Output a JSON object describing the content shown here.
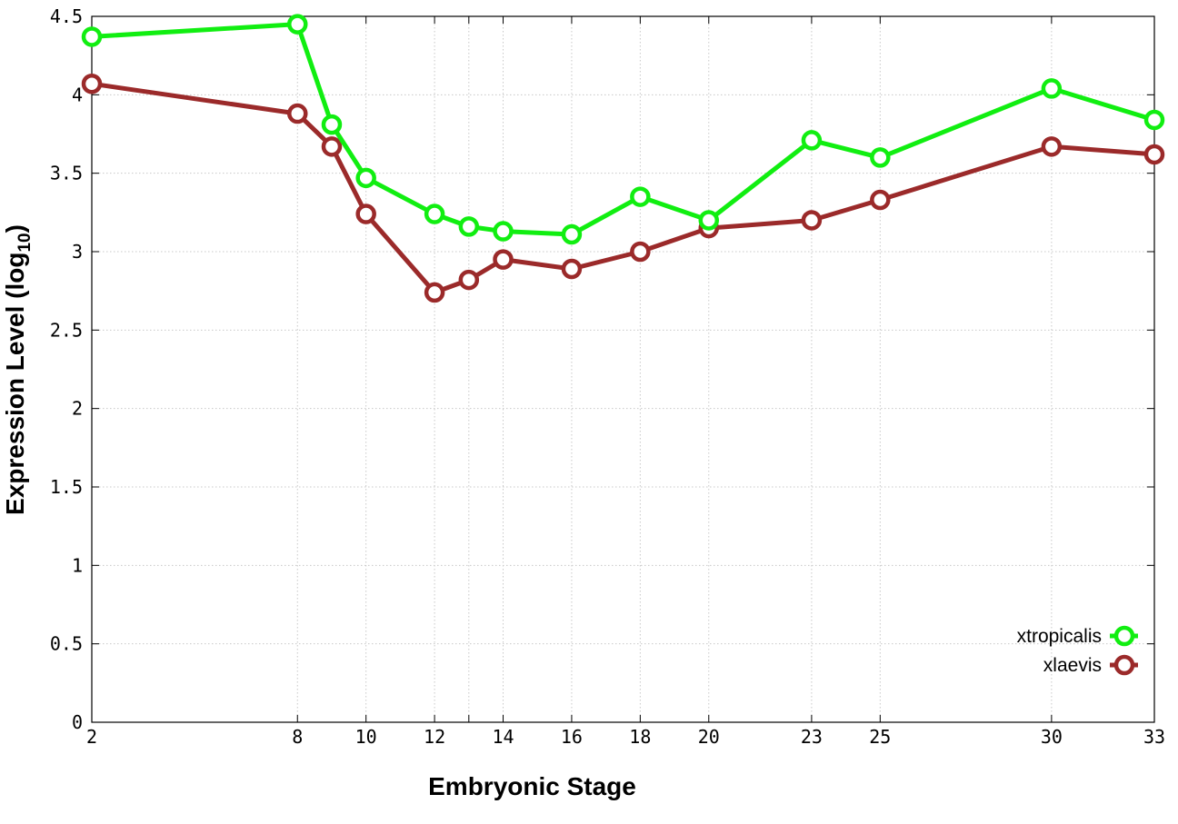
{
  "chart_data": {
    "type": "line",
    "title": "",
    "xlabel": "Embryonic Stage",
    "ylabel": {
      "prefix": "Expression Level (log",
      "subscript": "10",
      "suffix": ")"
    },
    "xlim": [
      2,
      33
    ],
    "ylim": [
      0,
      4.5
    ],
    "x_ticks": [
      2,
      8,
      10,
      12,
      13,
      14,
      16,
      18,
      20,
      23,
      25,
      30,
      33
    ],
    "x_tick_labels": [
      {
        "x": 2,
        "label": "2"
      },
      {
        "x": 8,
        "label": "8"
      },
      {
        "x": 10,
        "label": "10"
      },
      {
        "x": 12,
        "label": "12"
      },
      {
        "x": 14,
        "label": "14"
      },
      {
        "x": 16,
        "label": "16"
      },
      {
        "x": 18,
        "label": "18"
      },
      {
        "x": 20,
        "label": "20"
      },
      {
        "x": 23,
        "label": "23"
      },
      {
        "x": 25,
        "label": "25"
      },
      {
        "x": 30,
        "label": "30"
      },
      {
        "x": 33,
        "label": "33"
      }
    ],
    "y_ticks": [
      {
        "value": 0,
        "label": "0"
      },
      {
        "value": 0.5,
        "label": "0.5"
      },
      {
        "value": 1,
        "label": "1"
      },
      {
        "value": 1.5,
        "label": "1.5"
      },
      {
        "value": 2,
        "label": "2"
      },
      {
        "value": 2.5,
        "label": "2.5"
      },
      {
        "value": 3,
        "label": "3"
      },
      {
        "value": 3.5,
        "label": "3.5"
      },
      {
        "value": 4,
        "label": "4"
      },
      {
        "value": 4.5,
        "label": "4.5"
      }
    ],
    "grid": true,
    "legend_position": "bottom-right",
    "x": [
      2,
      8,
      9,
      10,
      12,
      13,
      14,
      16,
      18,
      20,
      23,
      25,
      30,
      33
    ],
    "series": [
      {
        "name": "xtropicalis",
        "color": "#11ee11",
        "values": [
          4.37,
          4.45,
          3.81,
          3.47,
          3.24,
          3.16,
          3.13,
          3.11,
          3.35,
          3.2,
          3.71,
          3.6,
          4.04,
          3.84
        ]
      },
      {
        "name": "xlaevis",
        "color": "#9b2a2a",
        "values": [
          4.07,
          3.88,
          3.67,
          3.24,
          2.74,
          2.82,
          2.95,
          2.89,
          3.0,
          3.15,
          3.2,
          3.33,
          3.67,
          3.62
        ]
      }
    ]
  }
}
